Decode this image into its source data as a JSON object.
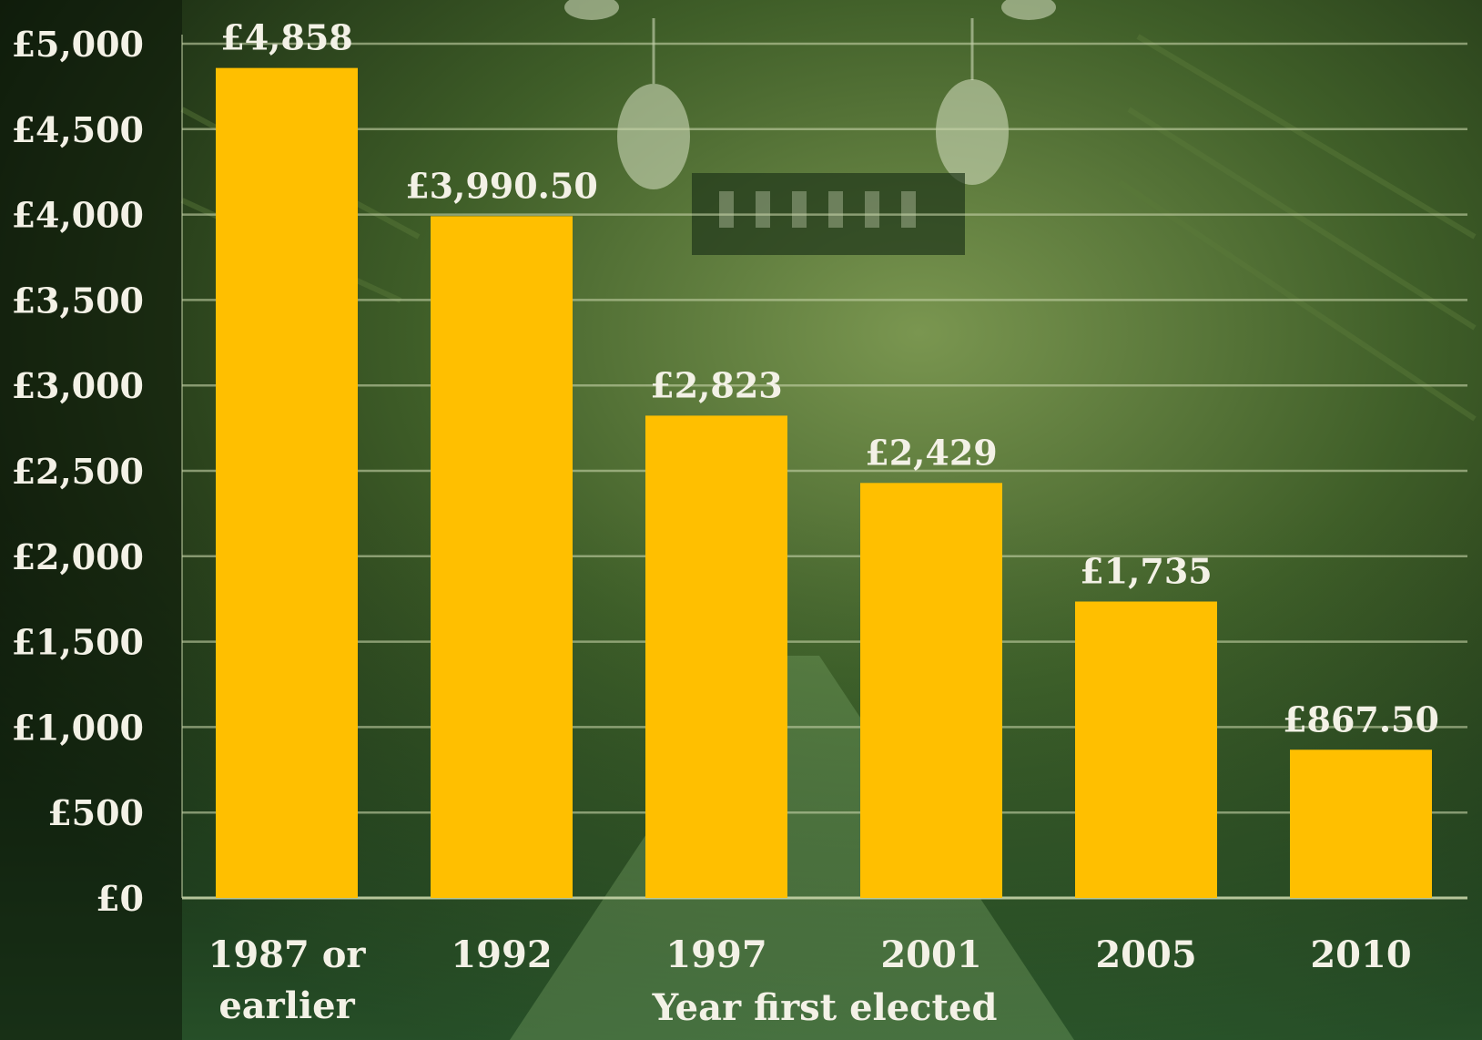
{
  "chart_data": {
    "type": "bar",
    "categories": [
      "1987 or earlier",
      "1992",
      "1997",
      "2001",
      "2005",
      "2010"
    ],
    "values": [
      4858,
      3990.5,
      2823,
      2429,
      1735,
      867.5
    ],
    "value_labels": [
      "£4,858",
      "£3,990.50",
      "£2,823",
      "£2,429",
      "£1,735",
      "£867.50"
    ],
    "ylim": [
      0,
      5000
    ],
    "yticks": [
      0,
      500,
      1000,
      1500,
      2000,
      2500,
      3000,
      3500,
      4000,
      4500,
      5000
    ],
    "ytick_labels": [
      "£0",
      "£500",
      "£1,000",
      "£1,500",
      "£2,000",
      "£2,500",
      "£3,000",
      "£3,500",
      "£4,000",
      "£4,500",
      "£5,000"
    ],
    "xlabel": "Year first elected",
    "ylabel": "",
    "title": "",
    "grid": true,
    "colors": {
      "bar": "#ffbf00",
      "grid": "#c6d3a8",
      "text": "#f3f1e6",
      "background_dark": "#0f1e0d",
      "background_mid": "#2e4a1e",
      "background_light": "#6d8a45"
    }
  }
}
